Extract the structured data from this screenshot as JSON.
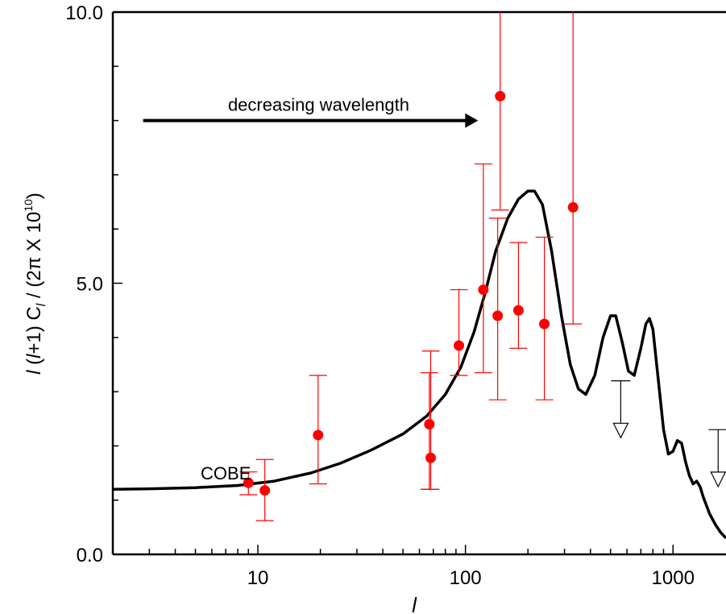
{
  "chart_data": {
    "type": "scatter",
    "xscale": "log",
    "xlim": [
      2,
      1800
    ],
    "ylim": [
      0,
      10
    ],
    "grid": false,
    "ylabel_parts": {
      "l1": "l",
      "mid": " (",
      "l2": "l",
      "plus": "+1) C",
      "sub": "l",
      "rest": " / (2π X 10",
      "exp": "10",
      "close": ")"
    },
    "xlabel": "l",
    "x_ticks": [
      {
        "value": 10,
        "label": "10"
      },
      {
        "value": 100,
        "label": "100"
      },
      {
        "value": 1000,
        "label": "1000"
      }
    ],
    "y_ticks": [
      {
        "value": 0,
        "label": "0.0"
      },
      {
        "value": 5,
        "label": "5.0"
      },
      {
        "value": 10,
        "label": "10.0"
      }
    ],
    "annotations": {
      "arrow_label": "decreasing wavelength",
      "arrow_from": {
        "x": 2.8,
        "y": 8.0
      },
      "arrow_to": {
        "x": 115,
        "y": 8.0
      },
      "cobe_label": "COBE",
      "cobe_at": {
        "x": 5.3,
        "y": 1.5
      }
    },
    "series": [
      {
        "type": "line",
        "color": "#000000",
        "points": [
          [
            2,
            1.2
          ],
          [
            3,
            1.21
          ],
          [
            5,
            1.23
          ],
          [
            8,
            1.27
          ],
          [
            12,
            1.35
          ],
          [
            18,
            1.5
          ],
          [
            25,
            1.68
          ],
          [
            35,
            1.92
          ],
          [
            50,
            2.22
          ],
          [
            65,
            2.55
          ],
          [
            80,
            2.95
          ],
          [
            95,
            3.45
          ],
          [
            110,
            4.1
          ],
          [
            125,
            4.85
          ],
          [
            140,
            5.6
          ],
          [
            160,
            6.2
          ],
          [
            180,
            6.55
          ],
          [
            200,
            6.7
          ],
          [
            215,
            6.7
          ],
          [
            235,
            6.45
          ],
          [
            260,
            5.6
          ],
          [
            290,
            4.4
          ],
          [
            320,
            3.5
          ],
          [
            350,
            3.05
          ],
          [
            380,
            2.95
          ],
          [
            420,
            3.3
          ],
          [
            460,
            4.0
          ],
          [
            500,
            4.4
          ],
          [
            530,
            4.4
          ],
          [
            570,
            3.9
          ],
          [
            610,
            3.38
          ],
          [
            650,
            3.3
          ],
          [
            700,
            3.8
          ],
          [
            740,
            4.25
          ],
          [
            770,
            4.35
          ],
          [
            800,
            4.15
          ],
          [
            850,
            3.2
          ],
          [
            900,
            2.3
          ],
          [
            950,
            1.85
          ],
          [
            1000,
            1.9
          ],
          [
            1050,
            2.1
          ],
          [
            1100,
            2.05
          ],
          [
            1150,
            1.7
          ],
          [
            1200,
            1.45
          ],
          [
            1250,
            1.3
          ],
          [
            1300,
            1.35
          ],
          [
            1350,
            1.25
          ],
          [
            1400,
            1.05
          ],
          [
            1500,
            0.75
          ],
          [
            1600,
            0.55
          ],
          [
            1700,
            0.4
          ],
          [
            1800,
            0.3
          ]
        ]
      },
      {
        "type": "scatter",
        "color": "#ff0000",
        "points": [
          {
            "x": 9,
            "y": 1.32,
            "lo": 1.1,
            "hi": 1.52
          },
          {
            "x": 10.8,
            "y": 1.18,
            "lo": 0.62,
            "hi": 1.75
          },
          {
            "x": 19.5,
            "y": 2.2,
            "lo": 1.3,
            "hi": 3.3
          },
          {
            "x": 67,
            "y": 2.4,
            "lo": 1.2,
            "hi": 3.35
          },
          {
            "x": 68,
            "y": 1.78,
            "lo": 1.2,
            "hi": 3.75
          },
          {
            "x": 93,
            "y": 3.85,
            "lo": 3.3,
            "hi": 4.88
          },
          {
            "x": 122,
            "y": 4.88,
            "lo": 3.35,
            "hi": 7.2
          },
          {
            "x": 143,
            "y": 4.4,
            "lo": 2.85,
            "hi": 6.2
          },
          {
            "x": 147,
            "y": 8.45,
            "lo": 6.35,
            "hi": 10.0
          },
          {
            "x": 180,
            "y": 4.5,
            "lo": 3.8,
            "hi": 5.75
          },
          {
            "x": 240,
            "y": 4.25,
            "lo": 2.85,
            "hi": 5.85
          },
          {
            "x": 330,
            "y": 6.4,
            "lo": 4.25,
            "hi": 10.0
          }
        ]
      },
      {
        "type": "upper-limit",
        "color": "#000000",
        "points": [
          {
            "x": 560,
            "y": 3.2,
            "to": 2.15
          },
          {
            "x": 1650,
            "y": 2.3,
            "to": 1.25
          }
        ]
      }
    ]
  }
}
